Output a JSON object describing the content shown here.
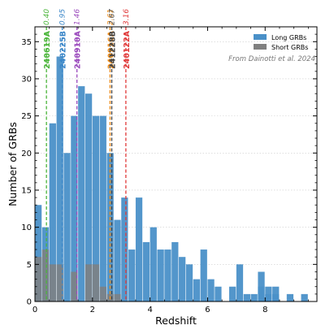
{
  "chart_data": {
    "type": "bar",
    "xlabel": "Redshift",
    "ylabel": "Number of GRBs",
    "xlim": [
      0,
      9.8
    ],
    "ylim": [
      0,
      37
    ],
    "xticks": [
      0,
      2,
      4,
      6,
      8
    ],
    "yticks": [
      0,
      5,
      10,
      15,
      20,
      25,
      30,
      35
    ],
    "bin_width": 0.25,
    "grid": "horizontal dotted",
    "legend_placement": "top-right",
    "annotation": "From Dainotti et al. 2024",
    "series": [
      {
        "name": "Long GRBs",
        "color": "#4a90c8",
        "bin_edges_start": 0,
        "values": [
          13,
          10,
          24,
          33,
          20,
          25,
          29,
          28,
          25,
          25,
          20,
          11,
          14,
          7,
          14,
          8,
          10,
          7,
          7,
          8,
          6,
          5,
          3,
          7,
          3,
          2,
          0,
          2,
          5,
          1,
          1,
          4,
          2,
          2,
          0,
          1,
          0,
          0,
          0,
          0,
          0,
          0,
          0,
          0,
          0,
          0,
          0,
          0,
          0,
          0,
          0,
          0,
          0,
          0,
          0,
          0,
          0,
          0,
          0,
          0,
          0,
          0,
          0,
          0,
          0,
          0,
          0,
          0,
          0,
          0,
          0,
          0,
          0,
          0,
          0,
          0,
          0,
          0,
          0,
          0,
          0,
          0,
          0,
          0,
          0,
          0,
          0,
          0,
          0,
          0,
          0,
          0,
          0,
          0,
          0,
          0,
          0,
          0,
          0,
          0
        ],
        "extra_bars": [
          {
            "x0": 7.75,
            "value": 2
          },
          {
            "x0": 8.0,
            "value": 1
          },
          {
            "x0": 8.25,
            "value": 1
          },
          {
            "x0": 9.25,
            "value": 1
          }
        ]
      },
      {
        "name": "Short GRBs",
        "color": "#808080",
        "bin_edges_start": 0,
        "values": [
          6,
          7,
          5,
          5,
          0,
          4,
          0,
          5,
          5,
          2,
          1,
          1,
          0,
          0,
          0,
          0,
          0,
          0,
          0,
          0,
          0,
          0,
          0,
          0,
          0,
          0,
          0,
          0,
          0,
          0,
          0,
          0,
          0,
          0,
          0,
          0,
          0,
          0,
          0,
          0
        ]
      }
    ],
    "grb_lines": [
      {
        "name": "240619A",
        "z": 0.4,
        "z_label": "0.40",
        "color": "#4bb53a"
      },
      {
        "name": "240225B",
        "z": 0.95,
        "z_label": "0.95",
        "color": "#3a86c8"
      },
      {
        "name": "240910A",
        "z": 1.46,
        "z_label": "1.46",
        "color": "#9b4bbd"
      },
      {
        "name": "240916A",
        "z": 2.61,
        "z_label": "2.61",
        "color": "#f08a12"
      },
      {
        "name": "241228B",
        "z": 2.67,
        "z_label": "2.67",
        "color": "#444444"
      },
      {
        "name": "240122A",
        "z": 3.16,
        "z_label": "3.16",
        "color": "#e03a3a"
      }
    ]
  }
}
